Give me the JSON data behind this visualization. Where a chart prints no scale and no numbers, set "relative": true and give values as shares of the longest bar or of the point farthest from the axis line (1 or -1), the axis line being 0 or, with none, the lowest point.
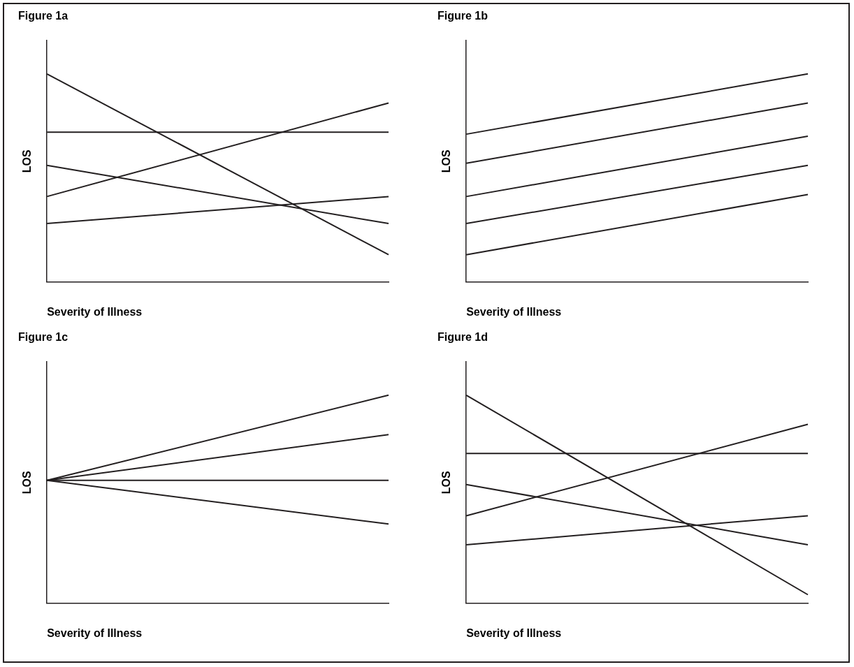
{
  "chart_data": [
    {
      "type": "line",
      "title": "Figure 1a",
      "xlabel": "Severity of Illness",
      "ylabel": "LOS",
      "relative": true,
      "categories": [
        null,
        null
      ],
      "legend": false,
      "marker": "none",
      "series": [
        {
          "color": "#231f20",
          "values": [
            1,
            0.13
          ]
        },
        {
          "color": "#231f20",
          "values": [
            0.72,
            0.72
          ]
        },
        {
          "color": "#231f20",
          "values": [
            0.56,
            0.28
          ]
        },
        {
          "color": "#231f20",
          "values": [
            0.41,
            0.86
          ]
        },
        {
          "color": "#231f20",
          "values": [
            0.28,
            0.41
          ]
        }
      ]
    },
    {
      "type": "line",
      "title": "Figure 1b",
      "xlabel": "Severity of Illness",
      "ylabel": "LOS",
      "relative": true,
      "categories": [
        null,
        null
      ],
      "legend": false,
      "marker": "none",
      "series": [
        {
          "color": "#231f20",
          "values": [
            0.71,
            1
          ]
        },
        {
          "color": "#231f20",
          "values": [
            0.57,
            0.86
          ]
        },
        {
          "color": "#231f20",
          "values": [
            0.41,
            0.7
          ]
        },
        {
          "color": "#231f20",
          "values": [
            0.28,
            0.56
          ]
        },
        {
          "color": "#231f20",
          "values": [
            0.13,
            0.42
          ]
        }
      ]
    },
    {
      "type": "line",
      "title": "Figure 1c",
      "xlabel": "Severity of Illness",
      "ylabel": "LOS",
      "relative": true,
      "categories": [
        null,
        null
      ],
      "legend": false,
      "marker": "none",
      "series": [
        {
          "color": "#231f20",
          "values": [
            0.59,
            1
          ]
        },
        {
          "color": "#231f20",
          "values": [
            0.59,
            0.81
          ]
        },
        {
          "color": "#231f20",
          "values": [
            0.59,
            0.59
          ]
        },
        {
          "color": "#231f20",
          "values": [
            0.59,
            0.38
          ]
        }
      ]
    },
    {
      "type": "line",
      "title": "Figure 1d",
      "xlabel": "Severity of Illness",
      "ylabel": "LOS",
      "relative": true,
      "categories": [
        null,
        null
      ],
      "legend": false,
      "marker": "none",
      "series": [
        {
          "color": "#231f20",
          "values": [
            1,
            0.04
          ]
        },
        {
          "color": "#231f20",
          "values": [
            0.72,
            0.72
          ]
        },
        {
          "color": "#231f20",
          "values": [
            0.57,
            0.28
          ]
        },
        {
          "color": "#231f20",
          "values": [
            0.42,
            0.86
          ]
        },
        {
          "color": "#231f20",
          "values": [
            0.28,
            0.42
          ]
        }
      ]
    }
  ]
}
